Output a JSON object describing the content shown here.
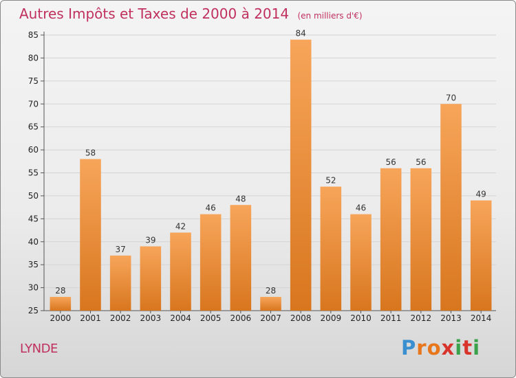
{
  "header": {
    "title": "Autres Impôts et Taxes de 2000 à 2014",
    "subtitle": "(en milliers d'€)"
  },
  "footer": {
    "commune": "LYNDE",
    "brand_letters": [
      "P",
      "r",
      "o",
      "x",
      "i",
      "t",
      "i"
    ],
    "brand_colors": [
      "#3a8fd0",
      "#e8761b",
      "#e8761b",
      "#d9342b",
      "#3aa24a",
      "#d9342b",
      "#3aa24a"
    ]
  },
  "colors": {
    "bar_top": "#f7a55a",
    "bar_bottom": "#d8761e",
    "title": "#c0305e"
  },
  "chart_data": {
    "type": "bar",
    "title": "Autres Impôts et Taxes de 2000 à 2014",
    "subtitle": "(en milliers d'€)",
    "categories": [
      "2000",
      "2001",
      "2002",
      "2003",
      "2004",
      "2005",
      "2006",
      "2007",
      "2008",
      "2009",
      "2010",
      "2011",
      "2012",
      "2013",
      "2014"
    ],
    "values": [
      28,
      58,
      37,
      39,
      42,
      46,
      48,
      28,
      84,
      52,
      46,
      56,
      56,
      70,
      49
    ],
    "ylim": [
      25,
      85
    ],
    "yticks": [
      25,
      30,
      35,
      40,
      45,
      50,
      55,
      60,
      65,
      70,
      75,
      80,
      85
    ],
    "grid": true,
    "xlabel": "",
    "ylabel": ""
  }
}
